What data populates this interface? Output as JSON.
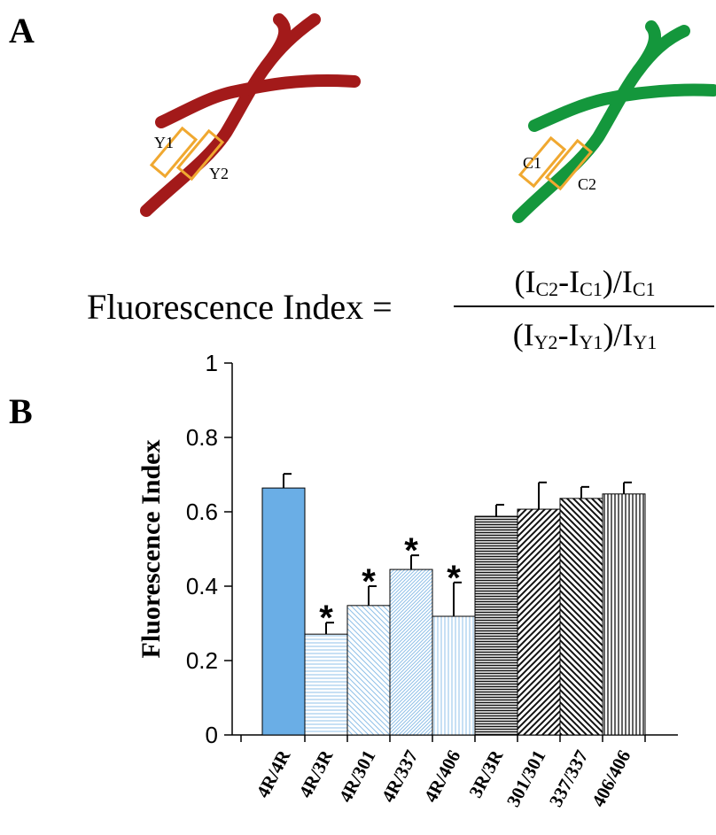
{
  "panel_a": {
    "label": "A",
    "y1": "Y1",
    "y2": "Y2",
    "c1": "C1",
    "c2": "C2",
    "formula_lhs": "Fluorescence Index =",
    "numerator": [
      "(I",
      "C2",
      "-I",
      "C1",
      ")/I",
      "C1"
    ],
    "denominator": [
      "(I",
      "Y2",
      "-I",
      "Y1",
      ")/I",
      "Y1"
    ]
  },
  "panel_b": {
    "label": "B"
  },
  "chart_data": {
    "type": "bar",
    "y_label": "Fluorescence Index",
    "categories": [
      "4R/4R",
      "4R/3R",
      "4R/301",
      "4R/337",
      "4R/406",
      "3R/3R",
      "301/301",
      "337/337",
      "406/406"
    ],
    "values": [
      0.664,
      0.271,
      0.348,
      0.445,
      0.319,
      0.588,
      0.607,
      0.636,
      0.648
    ],
    "errors": [
      0.038,
      0.031,
      0.052,
      0.038,
      0.091,
      0.031,
      0.072,
      0.031,
      0.031
    ],
    "significance": [
      null,
      "*",
      "*",
      "*",
      "*",
      null,
      null,
      null,
      null
    ],
    "fills": [
      "#6aaee6",
      "url(#p-hl)",
      "url(#p-bl)",
      "url(#p-fl)",
      "url(#p-vl)",
      "url(#p-hd)",
      "url(#p-fd)",
      "url(#p-bd)",
      "url(#p-vd)"
    ],
    "ylim": [
      0,
      1
    ],
    "yticks": [
      0,
      0.2,
      0.4,
      0.6,
      0.8,
      1
    ]
  }
}
